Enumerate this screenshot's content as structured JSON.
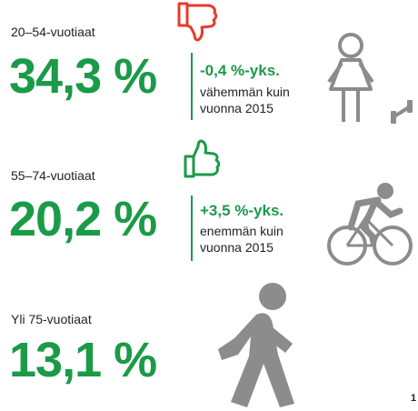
{
  "groups": [
    {
      "label": "20–54-vuotiaat",
      "value": "34,3 %",
      "change": "-0,4 %-yks.",
      "note": [
        "vähemmän kuin",
        "vuonna 2015"
      ]
    },
    {
      "label": "55–74-vuotiaat",
      "value": "20,2 %",
      "change": "+3,5 %-yks.",
      "note": [
        "enemmän kuin",
        "vuonna 2015"
      ]
    },
    {
      "label": "Yli 75-vuotiaat",
      "value": "13,1 %"
    }
  ],
  "page_number": "1"
}
